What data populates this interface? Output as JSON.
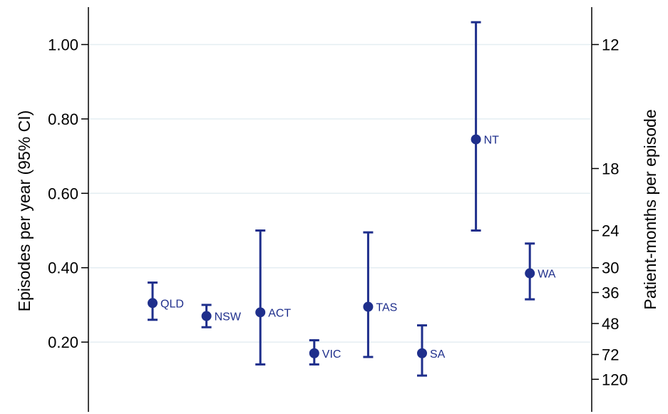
{
  "chart_data": {
    "type": "scatter",
    "subtype": "point-with-error-bars",
    "title": "",
    "ylabel": "Episodes per year (95% CI)",
    "y2label": "Patient-months per episode",
    "ylim": [
      0.0,
      1.1
    ],
    "yticks": [
      {
        "value": 1.0,
        "label": "1.00"
      },
      {
        "value": 0.8,
        "label": "0.80"
      },
      {
        "value": 0.6,
        "label": "0.60"
      },
      {
        "value": 0.4,
        "label": "0.40"
      },
      {
        "value": 0.2,
        "label": "0.20"
      }
    ],
    "y2ticks": [
      {
        "months": 12,
        "label": "12"
      },
      {
        "months": 18,
        "label": "18"
      },
      {
        "months": 24,
        "label": "24"
      },
      {
        "months": 30,
        "label": "30"
      },
      {
        "months": 36,
        "label": "36"
      },
      {
        "months": 48,
        "label": "48"
      },
      {
        "months": 72,
        "label": "72"
      },
      {
        "months": 120,
        "label": "120"
      }
    ],
    "grid": true,
    "color": "#1f2f8c",
    "gridcolor": "#e4eef2",
    "points": [
      {
        "label": "QLD",
        "value": 0.305,
        "lower": 0.26,
        "upper": 0.36
      },
      {
        "label": "NSW",
        "value": 0.27,
        "lower": 0.24,
        "upper": 0.3
      },
      {
        "label": "ACT",
        "value": 0.28,
        "lower": 0.14,
        "upper": 0.5
      },
      {
        "label": "VIC",
        "value": 0.17,
        "lower": 0.14,
        "upper": 0.205
      },
      {
        "label": "TAS",
        "value": 0.295,
        "lower": 0.16,
        "upper": 0.495
      },
      {
        "label": "SA",
        "value": 0.17,
        "lower": 0.11,
        "upper": 0.245
      },
      {
        "label": "NT",
        "value": 0.745,
        "lower": 0.5,
        "upper": 1.06
      },
      {
        "label": "WA",
        "value": 0.385,
        "lower": 0.315,
        "upper": 0.465
      }
    ]
  }
}
